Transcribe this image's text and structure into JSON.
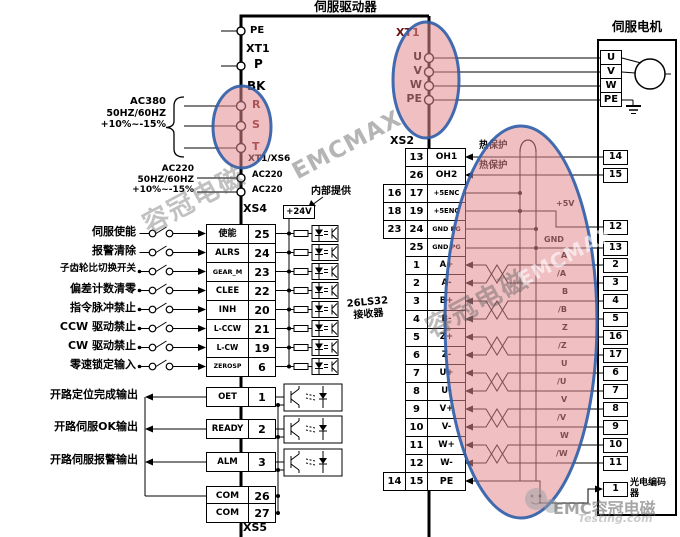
{
  "colors": {
    "highlight_fill": "#E28A90",
    "highlight_border": "#2D5DA8",
    "wire": "#000000"
  },
  "titles": {
    "drive": "伺服驱动器",
    "motor": "伺服电机"
  },
  "left_panel": {
    "pe": "PE",
    "xt1": "XT1",
    "p": "P",
    "bk": "BK",
    "r": "R",
    "s": "S",
    "t": "T",
    "xt1_xs6": "XT1/XS6",
    "ac220_pin_a": "AC220",
    "ac220_pin_b": "AC220",
    "ac380": {
      "l1": "AC380",
      "l2": "50HZ/60HZ",
      "l3": "+10%~-15%"
    },
    "ac220": {
      "l1": "AC220",
      "l2": "50HZ/60HZ",
      "l3": "+10%~-15%"
    }
  },
  "xs4": {
    "label": "XS4",
    "v24": "+24V",
    "internal_note": "内部提供",
    "rows": [
      {
        "ext": "伺服使能",
        "signal": "使能",
        "pin": "25"
      },
      {
        "ext": "报警清除",
        "signal": "ALRS",
        "pin": "24"
      },
      {
        "ext": "子齿轮比切换开关",
        "signal": "GEAR_M",
        "pin": "23"
      },
      {
        "ext": "偏差计数清零",
        "signal": "CLEE",
        "pin": "22"
      },
      {
        "ext": "指令脉冲禁止",
        "signal": "INH",
        "pin": "20"
      },
      {
        "ext": "CCW 驱动禁止",
        "signal": "L-CCW",
        "pin": "21"
      },
      {
        "ext": "CW 驱动禁止",
        "signal": "L-CW",
        "pin": "19"
      },
      {
        "ext": "零速锁定输入",
        "signal": "ZEROSP",
        "pin": "6"
      }
    ]
  },
  "xs5": {
    "label": "XS5",
    "outputs": [
      {
        "ext": "开路定位完成输出",
        "signal": "OET",
        "pin": "1"
      },
      {
        "ext": "开路伺服OK输出",
        "signal": "READY",
        "pin": "2"
      },
      {
        "ext": "开路伺服报警输出",
        "signal": "ALM",
        "pin": "3"
      }
    ],
    "commons": [
      {
        "signal": "COM",
        "pin": "26"
      },
      {
        "signal": "COM",
        "pin": "27"
      }
    ]
  },
  "xs2": {
    "label": "XS2",
    "receiver_l1": "26LS32",
    "receiver_l2": "接收器",
    "thermal_a": "热保护",
    "thermal_b": "热保护",
    "rows": [
      {
        "outer": "",
        "pin": "13",
        "signal": "OH1"
      },
      {
        "outer": "",
        "pin": "26",
        "signal": "OH2"
      },
      {
        "outer": "16",
        "pin": "17",
        "signal": "+5ENC"
      },
      {
        "outer": "18",
        "pin": "19",
        "signal": "+5ENC"
      },
      {
        "outer": "23",
        "pin": "24",
        "signal": "GND PG"
      },
      {
        "outer": "",
        "pin": "25",
        "signal": "GND PG"
      },
      {
        "outer": "",
        "pin": "1",
        "signal": "A+"
      },
      {
        "outer": "",
        "pin": "2",
        "signal": "A-"
      },
      {
        "outer": "",
        "pin": "3",
        "signal": "B+"
      },
      {
        "outer": "",
        "pin": "4",
        "signal": "B-"
      },
      {
        "outer": "",
        "pin": "5",
        "signal": "Z+"
      },
      {
        "outer": "",
        "pin": "6",
        "signal": "Z-"
      },
      {
        "outer": "",
        "pin": "7",
        "signal": "U+"
      },
      {
        "outer": "",
        "pin": "8",
        "signal": "U-"
      },
      {
        "outer": "",
        "pin": "9",
        "signal": "V+"
      },
      {
        "outer": "",
        "pin": "10",
        "signal": "V-"
      },
      {
        "outer": "",
        "pin": "11",
        "signal": "W+"
      },
      {
        "outer": "",
        "pin": "12",
        "signal": "W-"
      },
      {
        "outer": "14",
        "pin": "15",
        "signal": "PE"
      }
    ]
  },
  "cable": {
    "labels": [
      "+5V",
      "GND",
      "A",
      "/A",
      "B",
      "/B",
      "Z",
      "/Z",
      "U",
      "/U",
      "V",
      "/V",
      "W",
      "/W"
    ]
  },
  "motor": {
    "xt1_label": "XT1",
    "xt1_pins": [
      "U",
      "V",
      "W",
      "PE"
    ],
    "terminals": [
      "U",
      "V",
      "W",
      "PE"
    ],
    "encoder_label": "光电编码器",
    "encoder_pins": [
      "14",
      "15",
      "12",
      "13",
      "2",
      "3",
      "4",
      "5",
      "16",
      "17",
      "6",
      "7",
      "8",
      "9",
      "10",
      "11",
      "1"
    ]
  },
  "watermarks": {
    "w1": "容冠电磁",
    "w2": "EMCMAX",
    "w3": "容冠电磁",
    "w4": "EMCMAX",
    "w5": "EMC容冠电磁",
    "w6": "Testing.com"
  }
}
